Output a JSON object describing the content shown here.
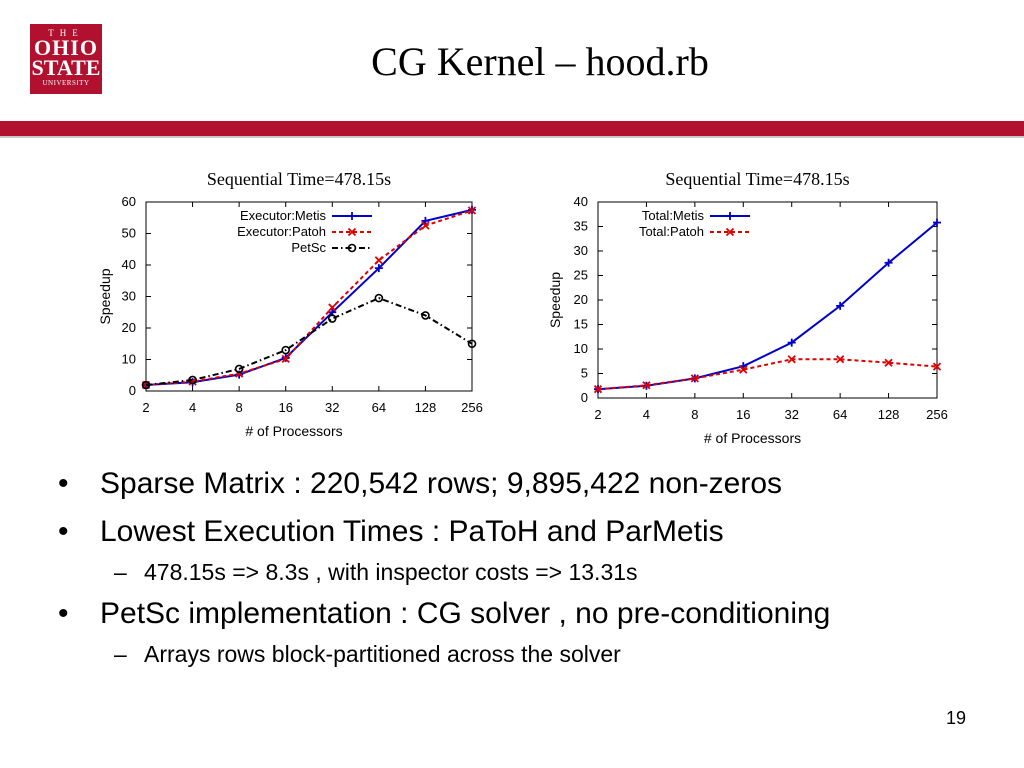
{
  "logo": {
    "line1": "THE",
    "line2": "OHIO",
    "line3": "STATE",
    "line4": "UNIVERSITY"
  },
  "title": "CG Kernel – hood.rb",
  "colors": {
    "brand_red": "#b2102f",
    "metis_blue": "#0000cc",
    "patoh_red": "#e00000",
    "petsc_black": "#000000"
  },
  "chart_data": [
    {
      "type": "line",
      "title": "Sequential Time=478.15s",
      "xlabel": "# of Processors",
      "ylabel": "Speedup",
      "categories": [
        "2",
        "4",
        "8",
        "16",
        "32",
        "64",
        "128",
        "256"
      ],
      "ylim": [
        0,
        60
      ],
      "yticks": [
        "0",
        "10",
        "20",
        "30",
        "40",
        "50",
        "60"
      ],
      "legend_position": "top-left",
      "series": [
        {
          "name": "Executor:Metis",
          "values": [
            1.9,
            2.8,
            5.2,
            10.5,
            25,
            39,
            54,
            57.5
          ],
          "color": "#0000cc",
          "dash": "solid",
          "marker": "plus"
        },
        {
          "name": "Executor:Patoh",
          "values": [
            1.9,
            3.0,
            5.5,
            10.2,
            26.5,
            41.5,
            52.5,
            57.3
          ],
          "color": "#e00000",
          "dash": "dashed",
          "marker": "x"
        },
        {
          "name": "PetSc",
          "values": [
            1.9,
            3.5,
            7.0,
            13.0,
            23.0,
            29.5,
            24.0,
            15.0
          ],
          "color": "#000000",
          "dash": "dashdot",
          "marker": "circle"
        }
      ]
    },
    {
      "type": "line",
      "title": "Sequential Time=478.15s",
      "xlabel": "# of Processors",
      "ylabel": "Speedup",
      "categories": [
        "2",
        "4",
        "8",
        "16",
        "32",
        "64",
        "128",
        "256"
      ],
      "ylim": [
        0,
        40
      ],
      "yticks": [
        "0",
        "5",
        "10",
        "15",
        "20",
        "25",
        "30",
        "35",
        "40"
      ],
      "legend_position": "top-left",
      "series": [
        {
          "name": "Total:Metis",
          "values": [
            1.8,
            2.5,
            4.0,
            6.5,
            11.3,
            18.8,
            27.6,
            35.8
          ],
          "color": "#0000cc",
          "dash": "solid",
          "marker": "plus"
        },
        {
          "name": "Total:Patoh",
          "values": [
            1.8,
            2.6,
            4.0,
            5.8,
            7.9,
            7.9,
            7.2,
            6.4
          ],
          "color": "#e00000",
          "dash": "dashed",
          "marker": "x"
        }
      ]
    }
  ],
  "bullets": [
    {
      "text": "Sparse Matrix : 220,542 rows; 9,895,422 non-zeros",
      "sub": []
    },
    {
      "text": "Lowest Execution Times : PaToH and ParMetis",
      "sub": [
        "478.15s => 8.3s , with inspector costs => 13.31s"
      ]
    },
    {
      "text": "PetSc implementation : CG solver , no pre-conditioning",
      "sub": [
        "Arrays rows block-partitioned across the solver"
      ]
    }
  ],
  "bullet_symbol": "•",
  "sub_symbol": "–",
  "page_number": "19"
}
